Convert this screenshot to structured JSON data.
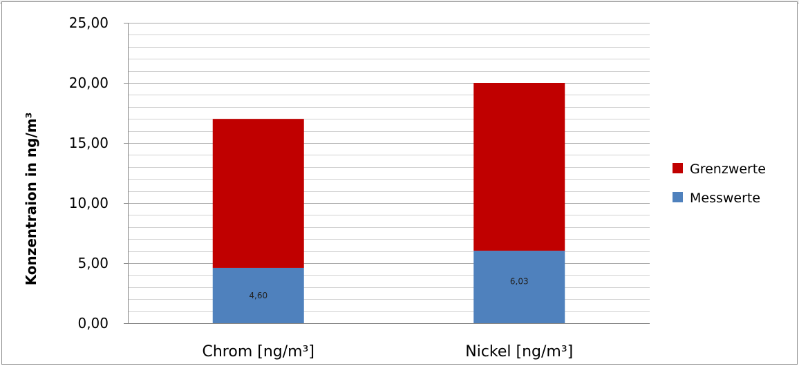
{
  "chart_data": {
    "type": "bar",
    "stacked": true,
    "categories": [
      "Chrom [ng/m³]",
      "Nickel [ng/m³]"
    ],
    "series": [
      {
        "name": "Messwerte",
        "values": [
          4.6,
          6.03
        ],
        "color": "#4f81bd",
        "data_labels": [
          "4,60",
          "6,03"
        ]
      },
      {
        "name": "Grenzwerte",
        "values": [
          12.4,
          13.97
        ],
        "color": "#c00000"
      }
    ],
    "ylabel": "Konzentraion in ng/m³",
    "ylim": [
      0,
      25
    ],
    "major_ticks": [
      "0,00",
      "5,00",
      "10,00",
      "15,00",
      "20,00",
      "25,00"
    ],
    "grid": true,
    "legend_position": "right",
    "legend": [
      "Grenzwerte",
      "Messwerte"
    ]
  }
}
